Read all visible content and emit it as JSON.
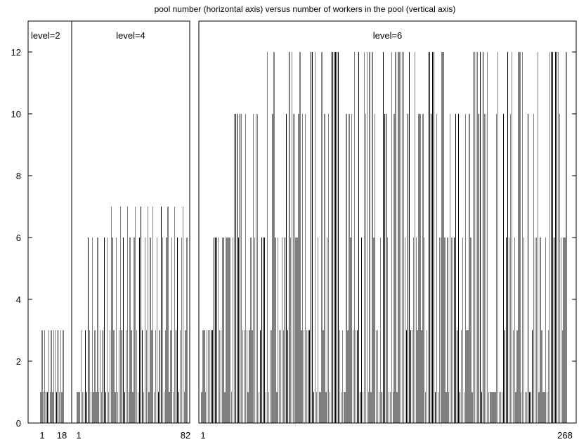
{
  "chart_data": {
    "type": "bar",
    "title": "pool number (horizontal axis) versus number of workers in the pool (vertical axis)",
    "xlabel": "",
    "ylabel": "",
    "ylim": [
      0,
      13
    ],
    "yticks": [
      0,
      2,
      4,
      6,
      8,
      10,
      12
    ],
    "grid": false,
    "legend": "none",
    "panels": [
      {
        "label": "level=2",
        "x_range": [
          1,
          18
        ],
        "x_tick_labels": [
          "1",
          "18"
        ],
        "values": [
          1,
          3,
          1,
          3,
          1,
          1,
          3,
          1,
          3,
          1,
          3,
          3,
          1,
          3,
          1,
          3,
          1,
          3
        ]
      },
      {
        "label": "level=4",
        "x_range": [
          1,
          82
        ],
        "x_tick_labels": [
          "1",
          "82"
        ],
        "values": [
          1,
          1,
          1,
          3,
          1,
          1,
          3,
          1,
          6,
          3,
          1,
          6,
          1,
          3,
          1,
          6,
          1,
          3,
          1,
          3,
          6,
          1,
          6,
          1,
          3,
          7,
          6,
          3,
          1,
          6,
          1,
          3,
          7,
          3,
          6,
          1,
          3,
          7,
          1,
          6,
          3,
          1,
          6,
          7,
          3,
          1,
          6,
          7,
          3,
          1,
          6,
          3,
          7,
          1,
          6,
          3,
          7,
          1,
          3,
          6,
          1,
          3,
          7,
          6,
          1,
          3,
          6,
          7,
          1,
          3,
          6,
          1,
          7,
          3,
          6,
          1,
          3,
          6,
          7,
          1,
          3,
          6
        ]
      },
      {
        "label": "level=6",
        "x_range": [
          1,
          268
        ],
        "x_tick_labels": [
          "1",
          "268"
        ],
        "max_value": 12,
        "values": "dense series of 268 pools ranging 1–12 workers; envelope rises from 1–3 near pool 1, to 6 and 10 in the first quarter, then peaks at 12 across the rest"
      }
    ]
  }
}
